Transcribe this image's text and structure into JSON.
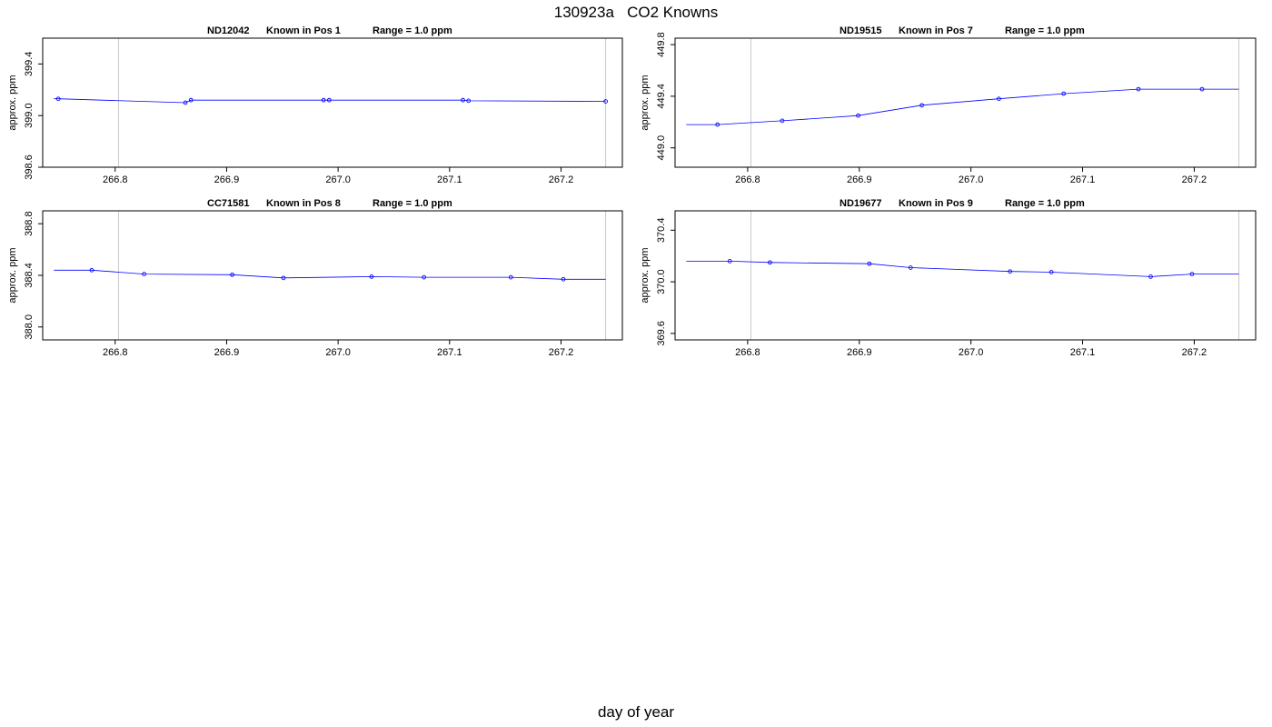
{
  "title": "130923a   CO2 Knowns",
  "xlabel": "day of year",
  "colors": {
    "line": "#0000ff",
    "points": "#0000ff",
    "ref_lines": "#c8c8c8",
    "axes": "#000000"
  },
  "chart_data": [
    {
      "type": "line",
      "panel_title": {
        "id": "ND12042",
        "position": "Known in Pos 1",
        "range": "Range = 1.0 ppm"
      },
      "ylabel": "approx. ppm",
      "xlim": [
        266.735,
        267.255
      ],
      "ylim": [
        398.6,
        399.6
      ],
      "x_ticks": [
        "266.8",
        "266.9",
        "267.0",
        "267.1",
        "267.2"
      ],
      "y_ticks": [
        "398.6",
        "399.0",
        "399.4"
      ],
      "ref_lines_x": [
        266.803,
        267.24
      ],
      "line_x": [
        266.745,
        266.749,
        266.863,
        266.868,
        266.987,
        266.992,
        267.112,
        267.117,
        267.24
      ],
      "line_y": [
        399.13,
        399.13,
        399.1,
        399.12,
        399.12,
        399.12,
        399.12,
        399.115,
        399.11
      ],
      "points_x": [
        266.749,
        266.863,
        266.868,
        266.987,
        266.992,
        267.112,
        267.117,
        267.24
      ],
      "points_y": [
        399.13,
        399.1,
        399.12,
        399.12,
        399.12,
        399.12,
        399.115,
        399.11
      ]
    },
    {
      "type": "line",
      "panel_title": {
        "id": "ND19515",
        "position": "Known in Pos 7",
        "range": "Range = 1.0 ppm"
      },
      "ylabel": "approx. ppm",
      "xlim": [
        266.735,
        267.255
      ],
      "ylim": [
        448.85,
        449.85
      ],
      "x_ticks": [
        "266.8",
        "266.9",
        "267.0",
        "267.1",
        "267.2"
      ],
      "y_ticks": [
        "449.0",
        "449.4",
        "449.8"
      ],
      "ref_lines_x": [
        266.803,
        267.24
      ],
      "line_x": [
        266.745,
        266.773,
        266.831,
        266.899,
        266.956,
        267.025,
        267.083,
        267.15,
        267.207,
        267.24
      ],
      "line_y": [
        449.18,
        449.18,
        449.21,
        449.25,
        449.33,
        449.38,
        449.42,
        449.455,
        449.455,
        449.455
      ],
      "points_x": [
        266.773,
        266.831,
        266.899,
        266.956,
        267.025,
        267.083,
        267.15,
        267.207
      ],
      "points_y": [
        449.18,
        449.21,
        449.25,
        449.33,
        449.38,
        449.42,
        449.455,
        449.455
      ]
    },
    {
      "type": "line",
      "panel_title": {
        "id": "CC71581",
        "position": "Known in Pos 8",
        "range": "Range = 1.0 ppm"
      },
      "ylabel": "approx. ppm",
      "xlim": [
        266.735,
        267.255
      ],
      "ylim": [
        387.9,
        388.9
      ],
      "x_ticks": [
        "266.8",
        "266.9",
        "267.0",
        "267.1",
        "267.2"
      ],
      "y_ticks": [
        "388.0",
        "388.4",
        "388.8"
      ],
      "ref_lines_x": [
        266.803,
        267.24
      ],
      "line_x": [
        266.745,
        266.779,
        266.826,
        266.905,
        266.951,
        267.03,
        267.077,
        267.155,
        267.202,
        267.24
      ],
      "line_y": [
        388.44,
        388.44,
        388.41,
        388.405,
        388.38,
        388.39,
        388.385,
        388.385,
        388.37,
        388.37
      ],
      "points_x": [
        266.779,
        266.826,
        266.905,
        266.951,
        267.03,
        267.077,
        267.155,
        267.202
      ],
      "points_y": [
        388.44,
        388.41,
        388.405,
        388.38,
        388.39,
        388.385,
        388.385,
        388.37
      ]
    },
    {
      "type": "line",
      "panel_title": {
        "id": "ND19677",
        "position": "Known in Pos 9",
        "range": "Range = 1.0 ppm"
      },
      "ylabel": "approx. ppm",
      "xlim": [
        266.735,
        267.255
      ],
      "ylim": [
        369.55,
        370.55
      ],
      "x_ticks": [
        "266.8",
        "266.9",
        "267.0",
        "267.1",
        "267.2"
      ],
      "y_ticks": [
        "369.6",
        "370.0",
        "370.4"
      ],
      "ref_lines_x": [
        266.803,
        267.24
      ],
      "line_x": [
        266.745,
        266.784,
        266.82,
        266.909,
        266.946,
        267.035,
        267.072,
        267.161,
        267.198,
        267.24
      ],
      "line_y": [
        370.16,
        370.16,
        370.15,
        370.14,
        370.11,
        370.08,
        370.075,
        370.04,
        370.06,
        370.06
      ],
      "points_x": [
        266.784,
        266.82,
        266.909,
        266.946,
        267.035,
        267.072,
        267.161,
        267.198
      ],
      "points_y": [
        370.16,
        370.15,
        370.14,
        370.11,
        370.08,
        370.075,
        370.04,
        370.06
      ]
    }
  ]
}
